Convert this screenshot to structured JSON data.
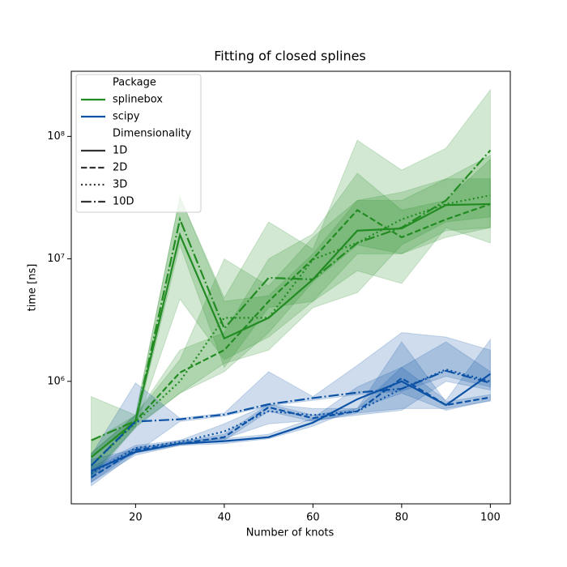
{
  "chart_data": {
    "type": "line",
    "title": "Fitting of closed splines",
    "xlabel": "Number of knots",
    "ylabel": "time [ns]",
    "x": [
      10,
      20,
      30,
      40,
      50,
      60,
      70,
      80,
      90,
      100
    ],
    "xlim": [
      5.5,
      104.5
    ],
    "xticks": [
      20,
      40,
      60,
      80,
      100
    ],
    "yscale": "log",
    "ylim": [
      100000,
      340000000
    ],
    "yticks": [
      {
        "value": 1000000,
        "label": "10⁶"
      },
      {
        "value": 10000000,
        "label": "10⁷"
      },
      {
        "value": 100000000,
        "label": "10⁸"
      }
    ],
    "band_opacity": 0.2,
    "legend": {
      "position": "upper left",
      "sections": [
        {
          "title": "Package",
          "entries": [
            {
              "label": "splinebox",
              "color": "#228b22",
              "dash": "solid"
            },
            {
              "label": "scipy",
              "color": "#0b52a6",
              "dash": "solid"
            }
          ]
        },
        {
          "title": "Dimensionality",
          "entries": [
            {
              "label": "1D",
              "color": "#333333",
              "dash": "solid"
            },
            {
              "label": "2D",
              "color": "#333333",
              "dash": "dashed"
            },
            {
              "label": "3D",
              "color": "#333333",
              "dash": "dotted"
            },
            {
              "label": "10D",
              "color": "#333333",
              "dash": "dashdot"
            }
          ]
        }
      ]
    },
    "series": [
      {
        "color": "#228b22",
        "dash": "solid",
        "values": [
          240000,
          475000,
          15700000,
          2240000,
          3300000,
          6800000,
          17000000,
          17700000,
          27500000,
          28000000
        ],
        "lower": [
          160000,
          420000,
          4700000,
          1500000,
          2300000,
          4500000,
          11000000,
          11000000,
          17000000,
          18000000
        ],
        "upper": [
          320000,
          530000,
          32000000,
          4500000,
          5000000,
          11000000,
          30000000,
          30000000,
          45000000,
          45000000
        ]
      },
      {
        "color": "#228b22",
        "dash": "dashed",
        "values": [
          205000,
          475000,
          1180000,
          1800000,
          4500000,
          10000000,
          25000000,
          15000000,
          21000000,
          28000000
        ],
        "lower": [
          170000,
          430000,
          800000,
          1200000,
          2500000,
          6500000,
          13000000,
          11000000,
          15000000,
          18000000
        ],
        "upper": [
          260000,
          530000,
          1800000,
          2500000,
          10000000,
          16000000,
          50000000,
          25000000,
          30000000,
          65000000
        ]
      },
      {
        "color": "#228b22",
        "dash": "dotted",
        "values": [
          205000,
          460000,
          1000000,
          3300000,
          3300000,
          9900000,
          13500000,
          21000000,
          28000000,
          33000000
        ],
        "lower": [
          170000,
          420000,
          800000,
          1400000,
          1800000,
          4000000,
          5300000,
          13000000,
          20000000,
          22000000
        ],
        "upper": [
          260000,
          530000,
          1500000,
          10000000,
          6000000,
          15000000,
          30000000,
          35000000,
          45000000,
          70000000
        ]
      },
      {
        "color": "#228b22",
        "dash": "dashdot",
        "values": [
          330000,
          475000,
          21000000,
          2700000,
          7000000,
          6800000,
          13500000,
          18000000,
          30000000,
          77000000
        ],
        "lower": [
          250000,
          430000,
          13000000,
          1300000,
          4000000,
          4500000,
          8000000,
          6300000,
          18000000,
          13500000
        ],
        "upper": [
          750000,
          530000,
          32000000,
          4800000,
          20000000,
          12000000,
          93000000,
          53000000,
          80000000,
          240000000
        ]
      },
      {
        "color": "#0b52a6",
        "dash": "solid",
        "values": [
          185000,
          265000,
          310000,
          325000,
          350000,
          460000,
          715000,
          1000000,
          640000,
          1150000
        ],
        "lower": [
          150000,
          250000,
          300000,
          310000,
          340000,
          430000,
          600000,
          800000,
          580000,
          700000
        ],
        "upper": [
          230000,
          280000,
          330000,
          340000,
          370000,
          500000,
          900000,
          1300000,
          700000,
          2200000
        ]
      },
      {
        "color": "#0b52a6",
        "dash": "dashed",
        "values": [
          164000,
          275000,
          310000,
          350000,
          615000,
          500000,
          570000,
          1060000,
          640000,
          740000
        ],
        "lower": [
          140000,
          260000,
          300000,
          330000,
          570000,
          470000,
          550000,
          600000,
          600000,
          690000
        ],
        "upper": [
          190000,
          290000,
          320000,
          370000,
          650000,
          530000,
          600000,
          2100000,
          680000,
          780000
        ]
      },
      {
        "color": "#0b52a6",
        "dash": "dotted",
        "values": [
          177000,
          285000,
          320000,
          390000,
          570000,
          530000,
          570000,
          870000,
          1250000,
          1000000
        ],
        "lower": [
          150000,
          270000,
          310000,
          340000,
          450000,
          480000,
          530000,
          580000,
          1000000,
          850000
        ],
        "upper": [
          200000,
          300000,
          330000,
          450000,
          650000,
          600000,
          600000,
          1300000,
          2100000,
          1200000
        ]
      },
      {
        "color": "#0b52a6",
        "dash": "dashdot",
        "values": [
          205000,
          470000,
          490000,
          535000,
          650000,
          730000,
          810000,
          870000,
          1220000,
          970000
        ],
        "lower": [
          170000,
          260000,
          470000,
          520000,
          630000,
          700000,
          780000,
          830000,
          1100000,
          900000
        ],
        "upper": [
          250000,
          970000,
          500000,
          550000,
          1200000,
          750000,
          1350000,
          2500000,
          2300000,
          1800000
        ]
      }
    ]
  }
}
